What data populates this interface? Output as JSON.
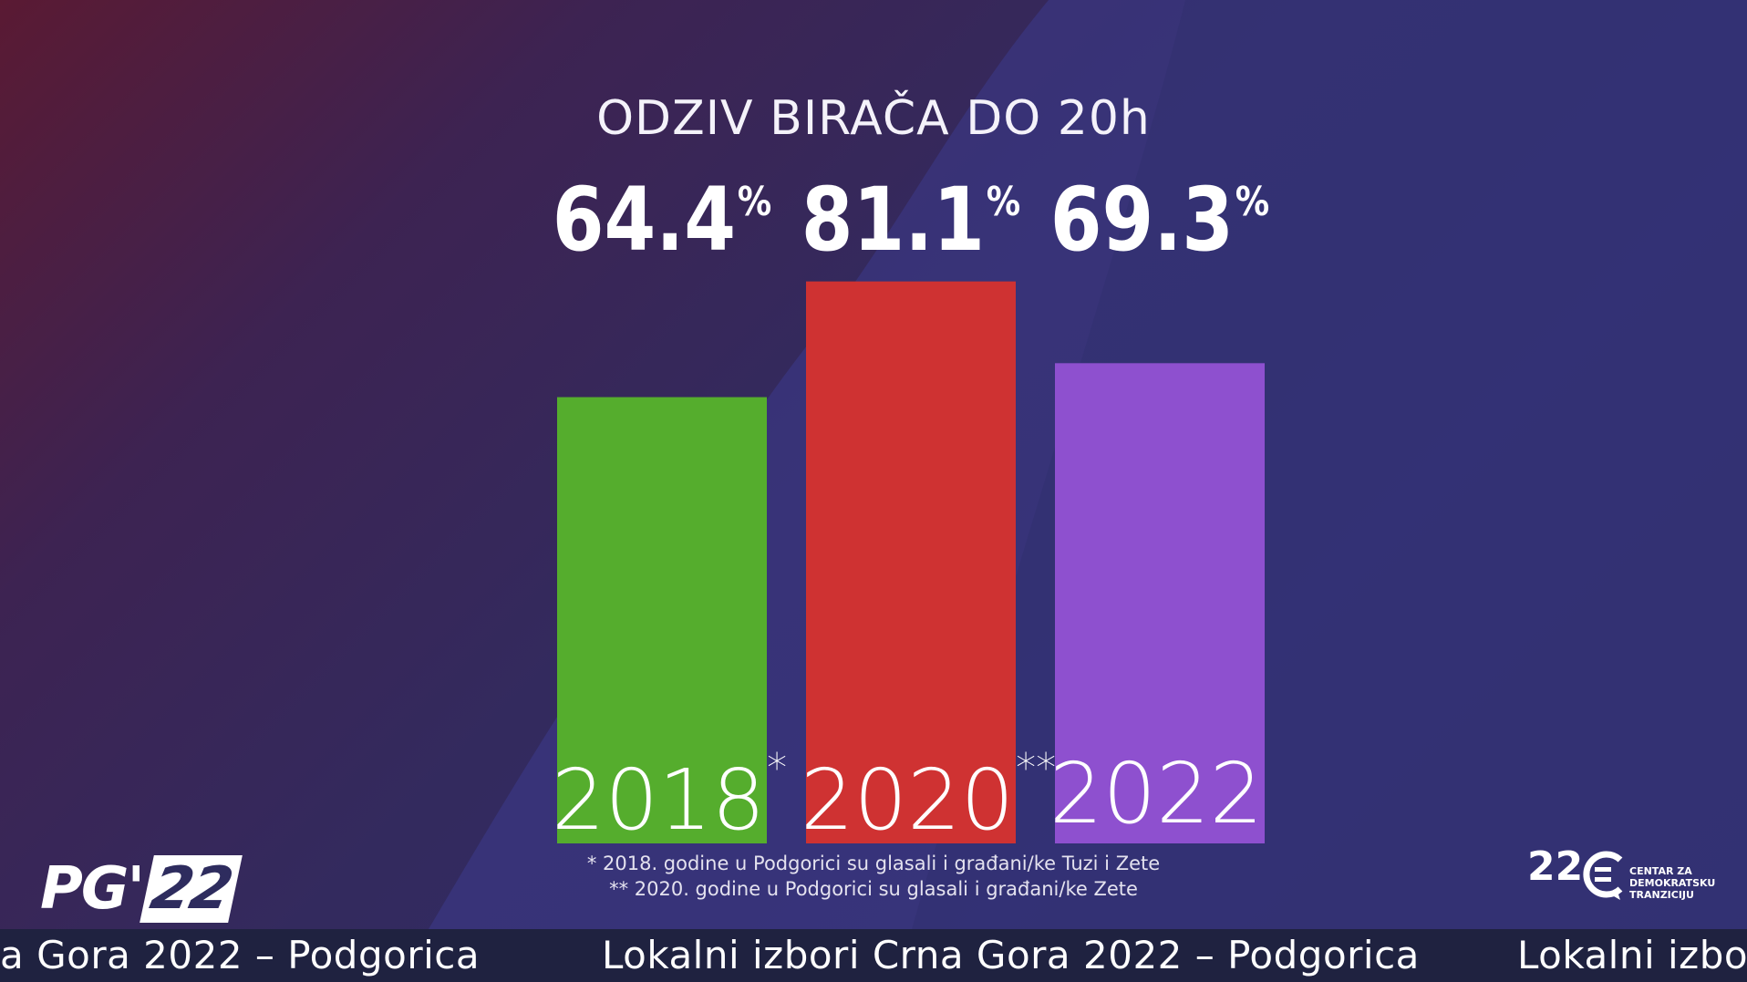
{
  "chart_data": {
    "type": "bar",
    "title": "ODZIV BIRAČA DO 20h",
    "categories": [
      "2018",
      "2020",
      "2022"
    ],
    "category_marks": [
      "*",
      "**",
      ""
    ],
    "values": [
      64.4,
      81.1,
      69.3
    ],
    "value_labels": [
      "64.4",
      "81.1",
      "69.3"
    ],
    "unit": "%",
    "colors": [
      "#55ad2d",
      "#cf3232",
      "#8e50cf"
    ],
    "ylim": [
      0,
      100
    ],
    "grid": false,
    "legend": "none"
  },
  "footnotes": [
    "* 2018. godine u Podgorici su glasali i građani/ke Tuzi i Zete",
    "** 2020. godine u Podgorici su glasali i građani/ke Zete"
  ],
  "logo_left": {
    "prefix": "PG'",
    "number": "22"
  },
  "logo_right": {
    "badge": "22",
    "org_lines": [
      "CENTAR ZA",
      "DEMOKRATSKU",
      "TRANZICIJU"
    ],
    "icon": "cdt-logo-icon"
  },
  "ticker": {
    "items": [
      "a Gora 2022 – Podgorica",
      "Lokalni izbori Crna Gora 2022 – Podgorica",
      "Lokalni izbor"
    ]
  }
}
